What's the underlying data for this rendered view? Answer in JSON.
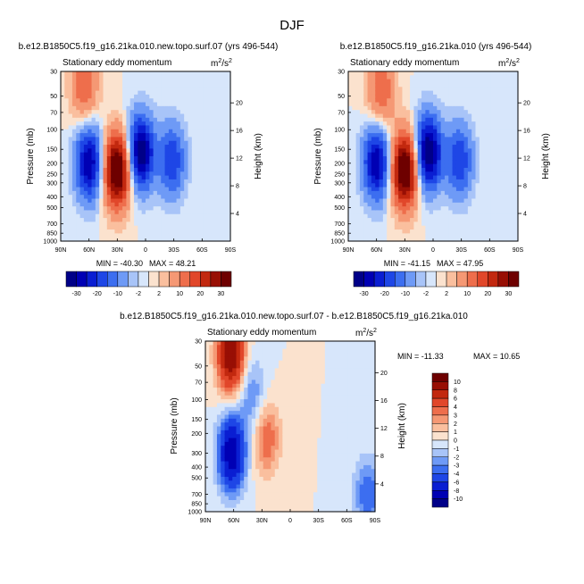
{
  "figure": {
    "title": "DJF",
    "colors": {
      "blue_dark": "#0000a0",
      "blue": "#2060e0",
      "light_blue": "#d9e8fb",
      "cream": "#fbe6d2",
      "red": "#e84020",
      "red_dark": "#8b0000"
    }
  },
  "chart_data": [
    {
      "id": "panel_left",
      "type": "heatmap",
      "subtype": "filled-contour",
      "run_title": "b.e12.B1850C5.f19_g16.21ka.010.new.topo.surf.07 (yrs 496-544)",
      "variable": "Stationary eddy momentum",
      "units_base": "m",
      "units_exp": "2",
      "units_den": "/s",
      "units_den_exp": "2",
      "ylabel": "Pressure (mb)",
      "ylabel_right": "Height (km)",
      "x_ticks": [
        "90N",
        "60N",
        "30N",
        "0",
        "30S",
        "60S",
        "90S"
      ],
      "x_range": [
        90,
        -90
      ],
      "y_ticks": [
        "30",
        "50",
        "70",
        "100",
        "150",
        "200",
        "250",
        "300",
        "400",
        "500",
        "700",
        "850",
        "1000"
      ],
      "y_tick_values": [
        30,
        50,
        70,
        100,
        150,
        200,
        250,
        300,
        400,
        500,
        700,
        850,
        1000
      ],
      "y_range": [
        30,
        1000
      ],
      "height_ticks": [
        "20",
        "16",
        "12",
        "8",
        "4"
      ],
      "height_values": [
        20,
        16,
        12,
        8,
        4
      ],
      "min_label": "MIN = -40.30",
      "max_label": "MAX = 48.21",
      "min": -40.3,
      "max": 48.21,
      "features": [
        {
          "lat": 60,
          "p": 200,
          "value": -30
        },
        {
          "lat": 30,
          "p": 230,
          "value": 40
        },
        {
          "lat": 5,
          "p": 160,
          "value": -35
        },
        {
          "lat": -28,
          "p": 190,
          "value": -20
        },
        {
          "lat": 65,
          "p": 40,
          "value": 15
        }
      ],
      "colorbar": {
        "labels": [
          "-30",
          "-20",
          "-10",
          "-2",
          "2",
          "10",
          "20",
          "30"
        ],
        "levels": [
          -30,
          -25,
          -20,
          -15,
          -10,
          -5,
          -2,
          0,
          2,
          5,
          10,
          15,
          20,
          25,
          30
        ]
      }
    },
    {
      "id": "panel_right",
      "type": "heatmap",
      "subtype": "filled-contour",
      "run_title": "b.e12.B1850C5.f19_g16.21ka.010 (yrs 496-544)",
      "variable": "Stationary eddy momentum",
      "units_base": "m",
      "units_exp": "2",
      "units_den": "/s",
      "units_den_exp": "2",
      "ylabel": "Pressure (mb)",
      "ylabel_right": "Height (km)",
      "x_ticks": [
        "90N",
        "60N",
        "30N",
        "0",
        "30S",
        "60S",
        "90S"
      ],
      "x_range": [
        90,
        -90
      ],
      "y_ticks": [
        "30",
        "50",
        "70",
        "100",
        "150",
        "200",
        "250",
        "300",
        "400",
        "500",
        "700",
        "850",
        "1000"
      ],
      "y_tick_values": [
        30,
        50,
        70,
        100,
        150,
        200,
        250,
        300,
        400,
        500,
        700,
        850,
        1000
      ],
      "y_range": [
        30,
        1000
      ],
      "height_ticks": [
        "20",
        "16",
        "12",
        "8",
        "4"
      ],
      "height_values": [
        20,
        16,
        12,
        8,
        4
      ],
      "min_label": "MIN = -41.15",
      "max_label": "MAX = 47.95",
      "min": -41.15,
      "max": 47.95,
      "features": [
        {
          "lat": 60,
          "p": 200,
          "value": -30
        },
        {
          "lat": 30,
          "p": 230,
          "value": 40
        },
        {
          "lat": 5,
          "p": 160,
          "value": -36
        },
        {
          "lat": -28,
          "p": 190,
          "value": -20
        },
        {
          "lat": 55,
          "p": 45,
          "value": 15
        }
      ],
      "colorbar": {
        "labels": [
          "-30",
          "-20",
          "-10",
          "-2",
          "2",
          "10",
          "20",
          "30"
        ],
        "levels": [
          -30,
          -25,
          -20,
          -15,
          -10,
          -5,
          -2,
          0,
          2,
          5,
          10,
          15,
          20,
          25,
          30
        ]
      }
    },
    {
      "id": "panel_diff",
      "type": "heatmap",
      "subtype": "filled-contour",
      "run_title": "b.e12.B1850C5.f19_g16.21ka.010.new.topo.surf.07 - b.e12.B1850C5.f19_g16.21ka.010",
      "variable": "Stationary eddy momentum",
      "units_base": "m",
      "units_exp": "2",
      "units_den": "/s",
      "units_den_exp": "2",
      "ylabel": "Pressure (mb)",
      "ylabel_right": "Height (km)",
      "x_ticks": [
        "90N",
        "60N",
        "30N",
        "0",
        "30S",
        "60S",
        "90S"
      ],
      "x_range": [
        90,
        -90
      ],
      "y_ticks": [
        "30",
        "50",
        "70",
        "100",
        "150",
        "200",
        "300",
        "400",
        "500",
        "700",
        "850",
        "1000"
      ],
      "y_tick_values": [
        30,
        50,
        70,
        100,
        150,
        200,
        300,
        400,
        500,
        700,
        850,
        1000
      ],
      "y_range": [
        30,
        1000
      ],
      "height_ticks": [
        "20",
        "16",
        "12",
        "8",
        "4"
      ],
      "height_values": [
        20,
        16,
        12,
        8,
        4
      ],
      "min_label": "MIN = -11.33",
      "max_label": "MAX =  10.65",
      "min": -11.33,
      "max": 10.65,
      "features": [
        {
          "lat": 63,
          "p": 40,
          "value": 10
        },
        {
          "lat": 62,
          "p": 300,
          "value": -10
        },
        {
          "lat": 25,
          "p": 220,
          "value": 4
        },
        {
          "lat": 40,
          "p": 90,
          "value": -3
        },
        {
          "lat": -82,
          "p": 700,
          "value": -4
        }
      ],
      "colorbar": {
        "labels": [
          "10",
          "8",
          "6",
          "4",
          "3",
          "2",
          "1",
          "0",
          "-1",
          "-2",
          "-3",
          "-4",
          "-6",
          "-8",
          "-10"
        ],
        "levels": [
          -10,
          -8,
          -6,
          -4,
          -3,
          -2,
          -1,
          0,
          1,
          2,
          3,
          4,
          6,
          8,
          10
        ]
      }
    }
  ]
}
